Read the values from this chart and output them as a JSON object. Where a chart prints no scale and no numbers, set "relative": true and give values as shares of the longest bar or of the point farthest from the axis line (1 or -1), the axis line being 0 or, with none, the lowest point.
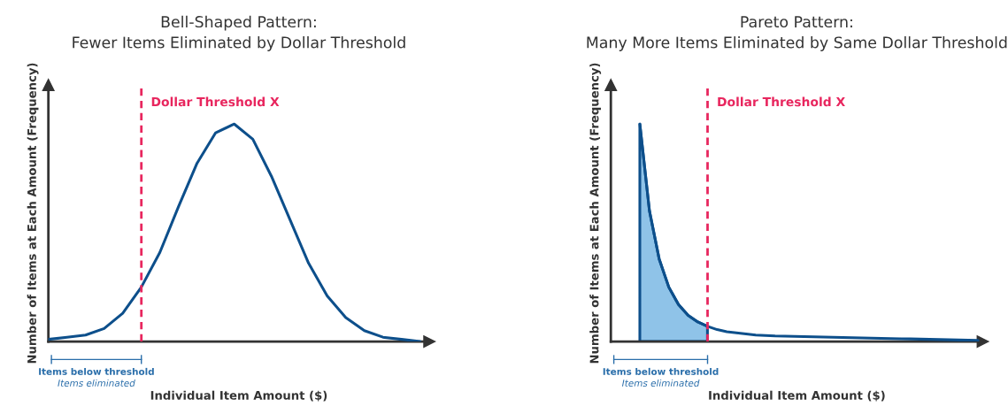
{
  "chart_data": [
    {
      "type": "line",
      "title": "Bell-Shaped Pattern:\nFewer Items Eliminated by Dollar Threshold",
      "xlabel": "Individual Item Amount ($)",
      "ylabel": "Number of Items at Each Amount (Frequency)",
      "relative": true,
      "categories": [
        null,
        null,
        null,
        null,
        null,
        null,
        null,
        null,
        null,
        null,
        null,
        null,
        null,
        null,
        null,
        null,
        null,
        null,
        null,
        null,
        null
      ],
      "series": [
        {
          "color": "#0d4f8b",
          "values": [
            0.01,
            0.02,
            0.03,
            0.06,
            0.13,
            0.25,
            0.41,
            0.62,
            0.82,
            0.96,
            1.0,
            0.93,
            0.76,
            0.56,
            0.36,
            0.21,
            0.11,
            0.05,
            0.02,
            0.01,
            0.0
          ]
        }
      ],
      "annotations": [
        "Dollar Threshold X",
        "Items below threshold",
        "Items eliminated"
      ]
    },
    {
      "type": "line",
      "title": "Pareto Pattern:\nMany More Items Eliminated by Same Dollar Threshold",
      "xlabel": "Individual Item Amount ($)",
      "ylabel": "Number of Items at Each Amount (Frequency)",
      "relative": true,
      "categories": [
        null,
        null,
        null,
        null,
        null,
        null,
        null,
        null,
        null,
        null,
        null,
        null,
        null,
        null,
        null,
        null,
        null,
        null,
        null,
        null,
        null,
        null,
        null,
        null,
        null,
        null,
        null,
        null,
        null,
        null,
        null,
        null,
        null,
        null,
        null,
        null,
        null,
        null,
        null
      ],
      "series": [
        {
          "type": "area",
          "color": "#8fc3e8",
          "values": [
            null,
            null,
            null,
            1.0,
            0.6,
            0.38,
            0.25,
            0.17,
            0.12,
            0.09,
            0.07,
            null,
            null,
            null,
            null,
            null,
            null,
            null,
            null,
            null,
            null,
            null,
            null,
            null,
            null,
            null,
            null,
            null,
            null,
            null,
            null,
            null,
            null,
            null,
            null,
            null,
            null,
            null,
            null
          ]
        },
        {
          "color": "#0d4f8b",
          "values": [
            null,
            null,
            null,
            1.0,
            0.6,
            0.38,
            0.25,
            0.17,
            0.12,
            0.09,
            0.07,
            0.055,
            0.045,
            0.04,
            0.035,
            0.03,
            0.028,
            0.026,
            0.025,
            0.024,
            0.023,
            0.022,
            0.021,
            0.02,
            0.019,
            0.018,
            0.017,
            0.016,
            0.015,
            0.014,
            0.013,
            0.012,
            0.011,
            0.01,
            0.009,
            0.008,
            0.007,
            0.006,
            0.005
          ]
        }
      ],
      "annotations": [
        "Dollar Threshold X",
        "Items below threshold",
        "Items eliminated"
      ]
    }
  ]
}
